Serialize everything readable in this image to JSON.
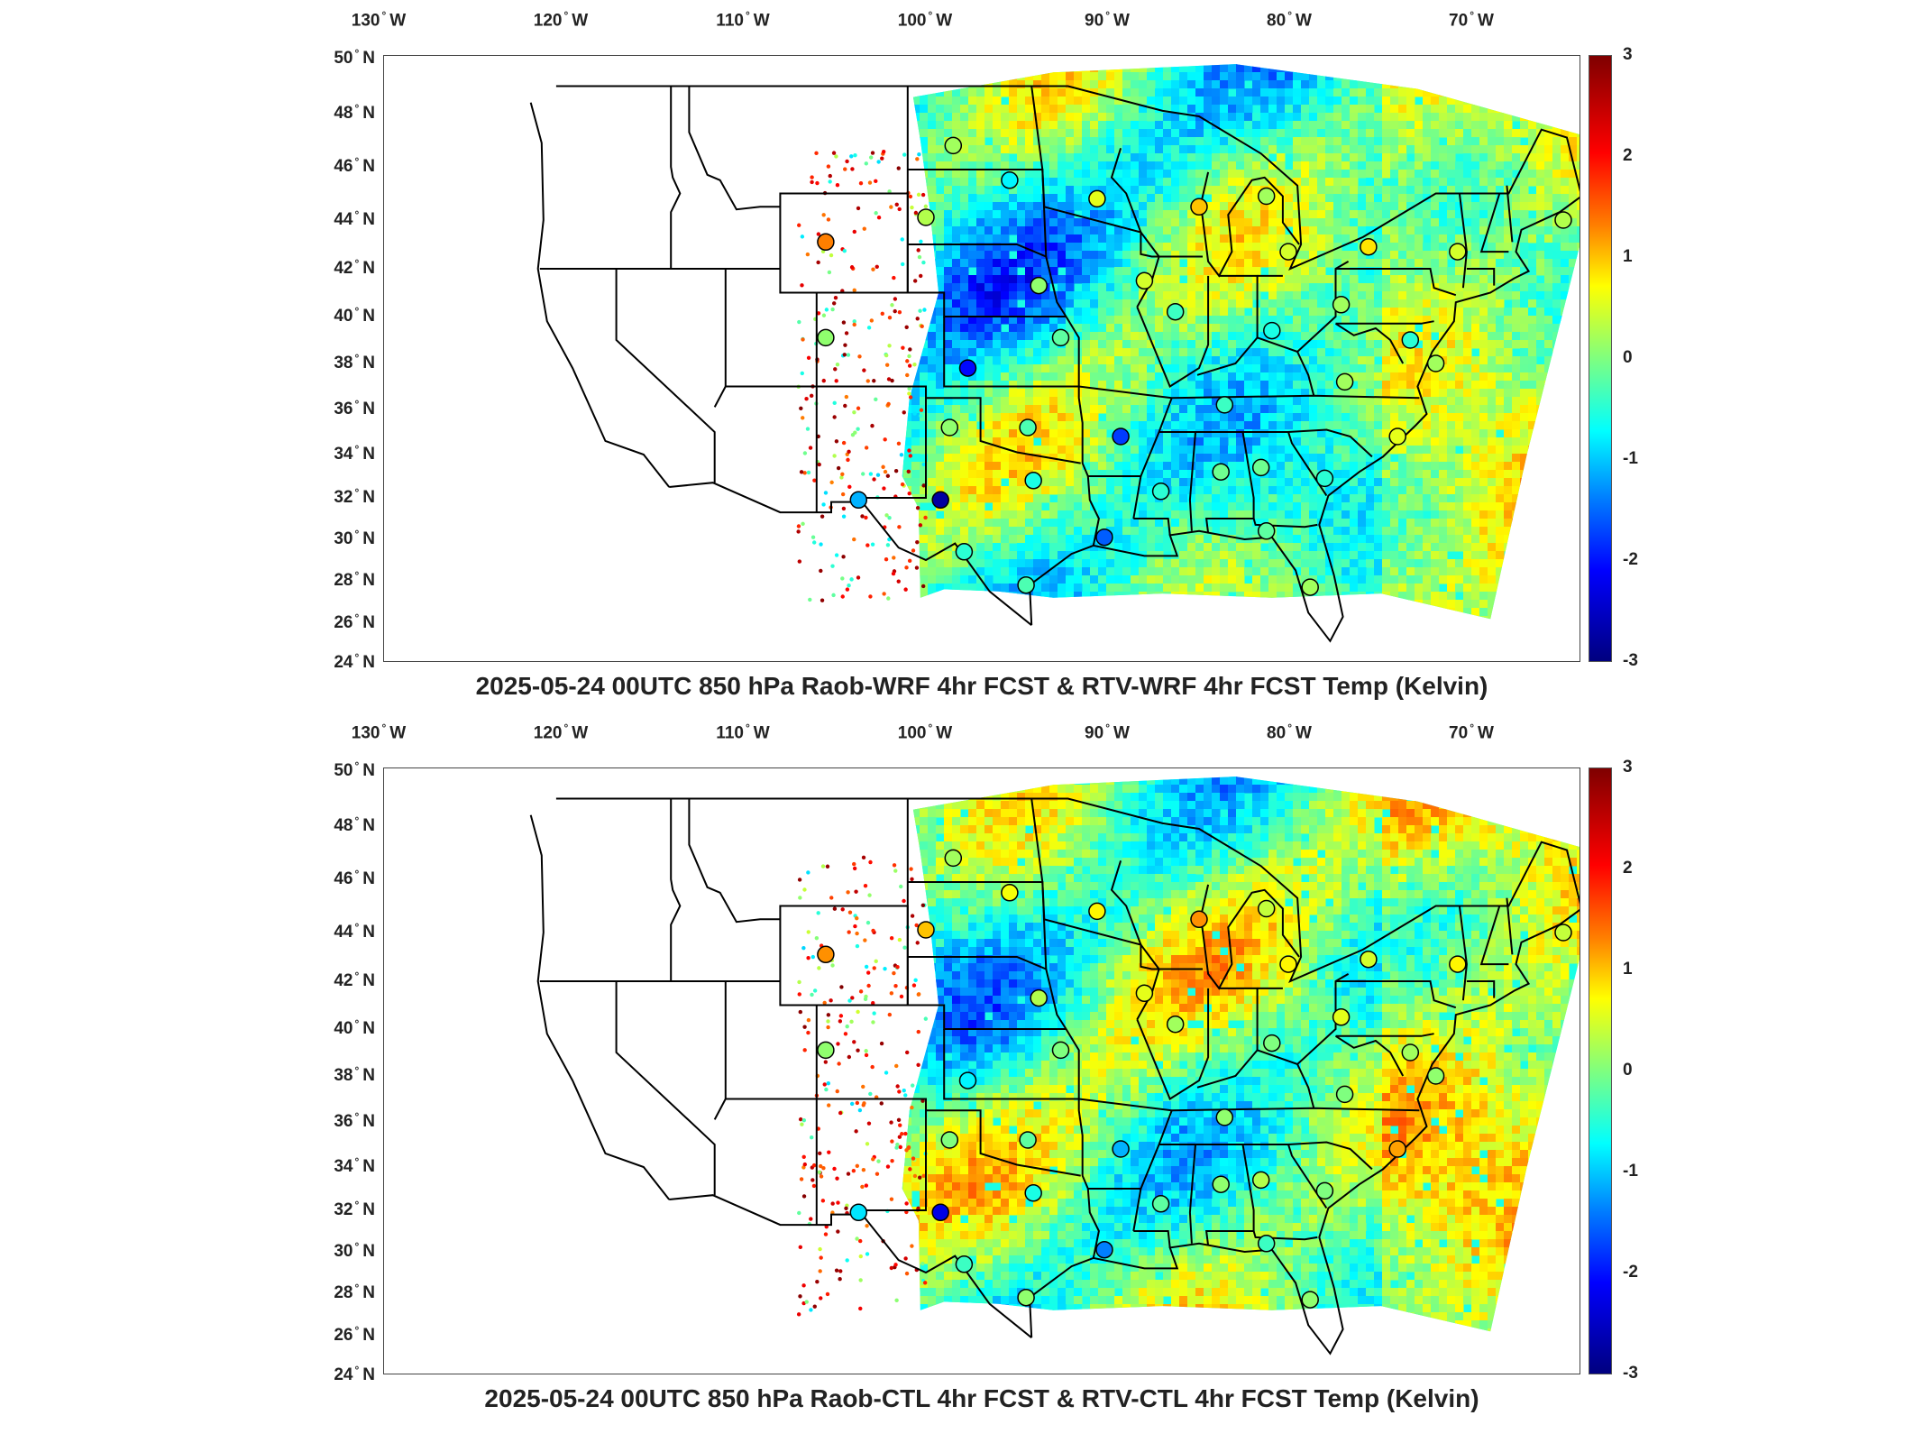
{
  "lon_labels": [
    {
      "deg": "130",
      "dir": "W"
    },
    {
      "deg": "120",
      "dir": "W"
    },
    {
      "deg": "110",
      "dir": "W"
    },
    {
      "deg": "100",
      "dir": "W"
    },
    {
      "deg": "90",
      "dir": "W"
    },
    {
      "deg": "80",
      "dir": "W"
    },
    {
      "deg": "70",
      "dir": "W"
    }
  ],
  "lat_labels": [
    {
      "deg": "50",
      "dir": "N"
    },
    {
      "deg": "48",
      "dir": "N"
    },
    {
      "deg": "46",
      "dir": "N"
    },
    {
      "deg": "44",
      "dir": "N"
    },
    {
      "deg": "42",
      "dir": "N"
    },
    {
      "deg": "40",
      "dir": "N"
    },
    {
      "deg": "38",
      "dir": "N"
    },
    {
      "deg": "36",
      "dir": "N"
    },
    {
      "deg": "34",
      "dir": "N"
    },
    {
      "deg": "32",
      "dir": "N"
    },
    {
      "deg": "30",
      "dir": "N"
    },
    {
      "deg": "28",
      "dir": "N"
    },
    {
      "deg": "26",
      "dir": "N"
    },
    {
      "deg": "24",
      "dir": "N"
    }
  ],
  "colorbar": {
    "ticks": [
      "3",
      "2",
      "1",
      "0",
      "-1",
      "-2",
      "-3"
    ],
    "colors": [
      "#7f0000",
      "#ff0000",
      "#ff7f00",
      "#ffff00",
      "#7fff7f",
      "#00ffff",
      "#007fff",
      "#0000ff",
      "#00007f"
    ]
  },
  "panels": [
    {
      "title": "2025-05-24 00UTC 850 hPa Raob-WRF 4hr FCST & RTV-WRF 4hr FCST Temp (Kelvin)",
      "stations": [
        {
          "lon": -101.5,
          "lat": 46.8,
          "v": 0.2
        },
        {
          "lon": -98.4,
          "lat": 45.5,
          "v": -0.8
        },
        {
          "lon": -93.6,
          "lat": 44.8,
          "v": 0.6
        },
        {
          "lon": -88.0,
          "lat": 44.5,
          "v": 1.1
        },
        {
          "lon": -84.3,
          "lat": 44.9,
          "v": 0.2
        },
        {
          "lon": -103.0,
          "lat": 44.1,
          "v": 0.3
        },
        {
          "lon": -108.5,
          "lat": 43.1,
          "v": 1.5
        },
        {
          "lon": -96.8,
          "lat": 41.3,
          "v": 0.1
        },
        {
          "lon": -91.0,
          "lat": 41.5,
          "v": 0.5
        },
        {
          "lon": -83.1,
          "lat": 42.7,
          "v": 0.5
        },
        {
          "lon": -78.7,
          "lat": 42.9,
          "v": 0.9
        },
        {
          "lon": -73.8,
          "lat": 42.7,
          "v": 0.5
        },
        {
          "lon": -68.0,
          "lat": 44.0,
          "v": 0.3
        },
        {
          "lon": -89.3,
          "lat": 40.2,
          "v": -0.4
        },
        {
          "lon": -80.2,
          "lat": 40.5,
          "v": 0.2
        },
        {
          "lon": -84.0,
          "lat": 39.4,
          "v": -0.6
        },
        {
          "lon": -95.6,
          "lat": 39.1,
          "v": -0.2
        },
        {
          "lon": -108.5,
          "lat": 39.1,
          "v": 0.1
        },
        {
          "lon": -100.7,
          "lat": 37.8,
          "v": -2.2
        },
        {
          "lon": -86.6,
          "lat": 36.2,
          "v": -0.4
        },
        {
          "lon": -80.0,
          "lat": 37.2,
          "v": 0.2
        },
        {
          "lon": -75.0,
          "lat": 38.0,
          "v": 0.2
        },
        {
          "lon": -97.4,
          "lat": 35.2,
          "v": -0.3
        },
        {
          "lon": -101.7,
          "lat": 35.2,
          "v": 0.1
        },
        {
          "lon": -92.3,
          "lat": 34.8,
          "v": -1.9
        },
        {
          "lon": -77.1,
          "lat": 34.8,
          "v": 0.6
        },
        {
          "lon": -86.8,
          "lat": 33.2,
          "v": -0.1
        },
        {
          "lon": -84.6,
          "lat": 33.4,
          "v": -0.1
        },
        {
          "lon": -81.1,
          "lat": 32.9,
          "v": -0.5
        },
        {
          "lon": -97.1,
          "lat": 32.8,
          "v": -0.6
        },
        {
          "lon": -90.1,
          "lat": 32.3,
          "v": -0.5
        },
        {
          "lon": -106.7,
          "lat": 31.9,
          "v": -1.2
        },
        {
          "lon": -102.2,
          "lat": 31.9,
          "v": -2.8
        },
        {
          "lon": -93.2,
          "lat": 30.1,
          "v": -1.7
        },
        {
          "lon": -84.3,
          "lat": 30.4,
          "v": -0.2
        },
        {
          "lon": -100.9,
          "lat": 29.4,
          "v": -0.5
        },
        {
          "lon": -97.5,
          "lat": 27.8,
          "v": -0.3
        },
        {
          "lon": -81.9,
          "lat": 27.7,
          "v": 0.2
        },
        {
          "lon": -76.4,
          "lat": 39.0,
          "v": -0.5
        }
      ]
    },
    {
      "title": "2025-05-24 00UTC 850 hPa Raob-CTL 4hr FCST & RTV-CTL 4hr FCST Temp (Kelvin)",
      "stations": [
        {
          "lon": -101.5,
          "lat": 46.8,
          "v": 0.2
        },
        {
          "lon": -98.4,
          "lat": 45.5,
          "v": 0.7
        },
        {
          "lon": -93.6,
          "lat": 44.8,
          "v": 0.8
        },
        {
          "lon": -88.0,
          "lat": 44.5,
          "v": 1.4
        },
        {
          "lon": -84.3,
          "lat": 44.9,
          "v": 0.4
        },
        {
          "lon": -103.0,
          "lat": 44.1,
          "v": 1.1
        },
        {
          "lon": -108.5,
          "lat": 43.1,
          "v": 1.4
        },
        {
          "lon": -96.8,
          "lat": 41.3,
          "v": 0.3
        },
        {
          "lon": -91.0,
          "lat": 41.5,
          "v": 0.6
        },
        {
          "lon": -83.1,
          "lat": 42.7,
          "v": 0.8
        },
        {
          "lon": -78.7,
          "lat": 42.9,
          "v": 0.5
        },
        {
          "lon": -73.8,
          "lat": 42.7,
          "v": 0.8
        },
        {
          "lon": -68.0,
          "lat": 44.0,
          "v": 0.4
        },
        {
          "lon": -89.3,
          "lat": 40.2,
          "v": 0.2
        },
        {
          "lon": -80.2,
          "lat": 40.5,
          "v": 0.6
        },
        {
          "lon": -84.0,
          "lat": 39.4,
          "v": 0.0
        },
        {
          "lon": -95.6,
          "lat": 39.1,
          "v": 0.0
        },
        {
          "lon": -108.5,
          "lat": 39.1,
          "v": 0.1
        },
        {
          "lon": -100.7,
          "lat": 37.8,
          "v": -0.8
        },
        {
          "lon": -86.6,
          "lat": 36.2,
          "v": 0.1
        },
        {
          "lon": -80.0,
          "lat": 37.2,
          "v": 0.0
        },
        {
          "lon": -75.0,
          "lat": 38.0,
          "v": 0.1
        },
        {
          "lon": -97.4,
          "lat": 35.2,
          "v": -0.2
        },
        {
          "lon": -101.7,
          "lat": 35.2,
          "v": 0.0
        },
        {
          "lon": -92.3,
          "lat": 34.8,
          "v": -1.2
        },
        {
          "lon": -77.1,
          "lat": 34.8,
          "v": 1.3
        },
        {
          "lon": -86.8,
          "lat": 33.2,
          "v": 0.1
        },
        {
          "lon": -84.6,
          "lat": 33.4,
          "v": 0.3
        },
        {
          "lon": -81.1,
          "lat": 32.9,
          "v": 0.0
        },
        {
          "lon": -97.1,
          "lat": 32.8,
          "v": -0.6
        },
        {
          "lon": -90.1,
          "lat": 32.3,
          "v": -0.2
        },
        {
          "lon": -106.7,
          "lat": 31.9,
          "v": -0.9
        },
        {
          "lon": -102.2,
          "lat": 31.9,
          "v": -2.4
        },
        {
          "lon": -93.2,
          "lat": 30.1,
          "v": -1.5
        },
        {
          "lon": -84.3,
          "lat": 30.4,
          "v": -0.4
        },
        {
          "lon": -100.9,
          "lat": 29.4,
          "v": -0.4
        },
        {
          "lon": -97.5,
          "lat": 27.8,
          "v": 0.1
        },
        {
          "lon": -81.9,
          "lat": 27.7,
          "v": 0.1
        },
        {
          "lon": -76.4,
          "lat": 39.0,
          "v": 0.2
        }
      ]
    }
  ]
}
